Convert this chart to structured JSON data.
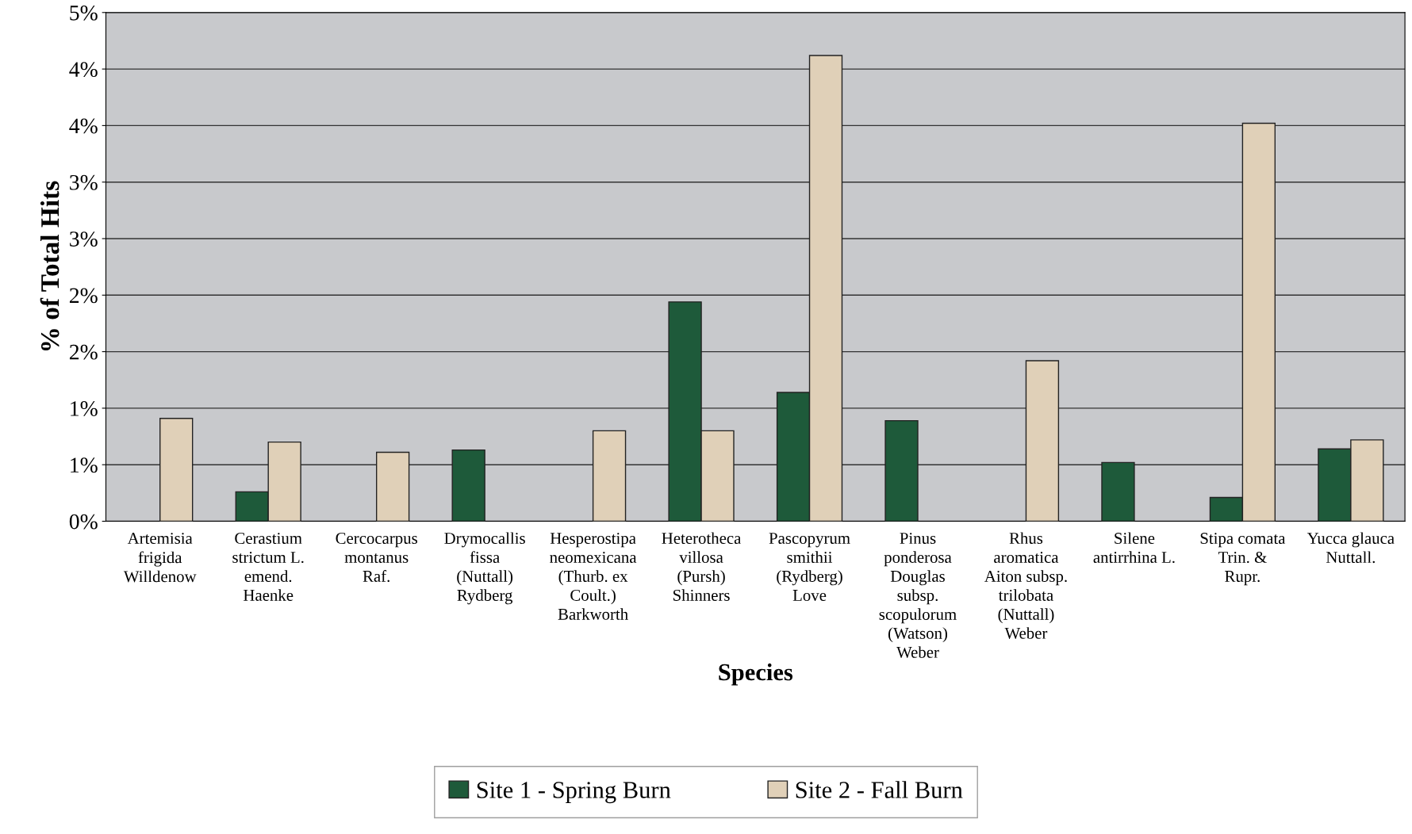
{
  "chart_data": {
    "type": "bar",
    "xlabel": "Species",
    "ylabel": "% of Total Hits",
    "categories": [
      "Artemisia\nfrigida\nWilldenow",
      "Cerastium\nstrictum L.\nemend.\nHaenke",
      "Cercocarpus\nmontanus\nRaf.",
      "Drymocallis\nfissa\n(Nuttall)\nRydberg",
      "Hesperostipa\nneomexicana\n(Thurb. ex\nCoult.)\nBarkworth",
      "Heterotheca\nvillosa\n(Pursh)\nShinners",
      "Pascopyrum\nsmithii\n(Rydberg)\nLove",
      "Pinus\nponderosa\nDouglas\nsubsp.\nscopulorum\n(Watson)\nWeber",
      "Rhus\naromatica\nAiton subsp.\ntrilobata\n(Nuttall)\nWeber",
      "Silene\nantirrhina L.",
      "Stipa comata\nTrin. &\nRupr.",
      "Yucca glauca\nNuttall."
    ],
    "series": [
      {
        "name": "Site 1 - Spring Burn",
        "color": "#1e5a3a",
        "values": [
          null,
          0.26,
          null,
          0.63,
          null,
          1.94,
          1.14,
          0.89,
          null,
          0.52,
          0.21,
          0.64
        ]
      },
      {
        "name": "Site 2 - Fall Burn",
        "color": "#e0d0b8",
        "values": [
          0.91,
          0.7,
          0.61,
          null,
          0.8,
          0.8,
          4.12,
          null,
          1.42,
          null,
          3.52,
          0.72
        ]
      }
    ],
    "ylim": [
      0,
      4.5
    ],
    "yticks": [
      {
        "value": 0,
        "label": "0%"
      },
      {
        "value": 0.5,
        "label": "1%"
      },
      {
        "value": 1,
        "label": "1%"
      },
      {
        "value": 1.5,
        "label": "2%"
      },
      {
        "value": 2,
        "label": "2%"
      },
      {
        "value": 2.5,
        "label": "3%"
      },
      {
        "value": 3,
        "label": "3%"
      },
      {
        "value": 3.5,
        "label": "4%"
      },
      {
        "value": 4,
        "label": "4%"
      },
      {
        "value": 4.5,
        "label": "5%"
      }
    ],
    "grid": "y",
    "legend": "bottom"
  }
}
